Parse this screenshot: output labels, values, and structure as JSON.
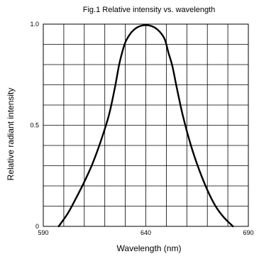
{
  "chart_data": {
    "type": "line",
    "title": "Fig.1 Relative intensity vs. wavelength",
    "xlabel": "Wavelength (nm)",
    "ylabel": "Relative radiant intensity",
    "xlim": [
      590,
      690
    ],
    "ylim": [
      0,
      1.0
    ],
    "x_ticks": [
      "590",
      "640",
      "690"
    ],
    "y_ticks": [
      "0",
      "0.5",
      "1.0"
    ],
    "grid": true,
    "x_grid_lines": 10,
    "y_grid_lines": 10,
    "line_color": "#000000",
    "series": [
      {
        "x": [
          597.5,
          602,
          606,
          610,
          614,
          618,
          622,
          625,
          627,
          629,
          630,
          631,
          633,
          636,
          640,
          644,
          647,
          649,
          650,
          651,
          653,
          655,
          658,
          662,
          666,
          670,
          674,
          678,
          682.5
        ],
        "y": [
          0.0,
          0.065,
          0.14,
          0.22,
          0.31,
          0.42,
          0.55,
          0.69,
          0.8,
          0.88,
          0.91,
          0.93,
          0.96,
          0.985,
          0.995,
          0.985,
          0.96,
          0.93,
          0.9,
          0.86,
          0.79,
          0.69,
          0.55,
          0.4,
          0.28,
          0.18,
          0.1,
          0.045,
          0.0
        ]
      }
    ]
  }
}
